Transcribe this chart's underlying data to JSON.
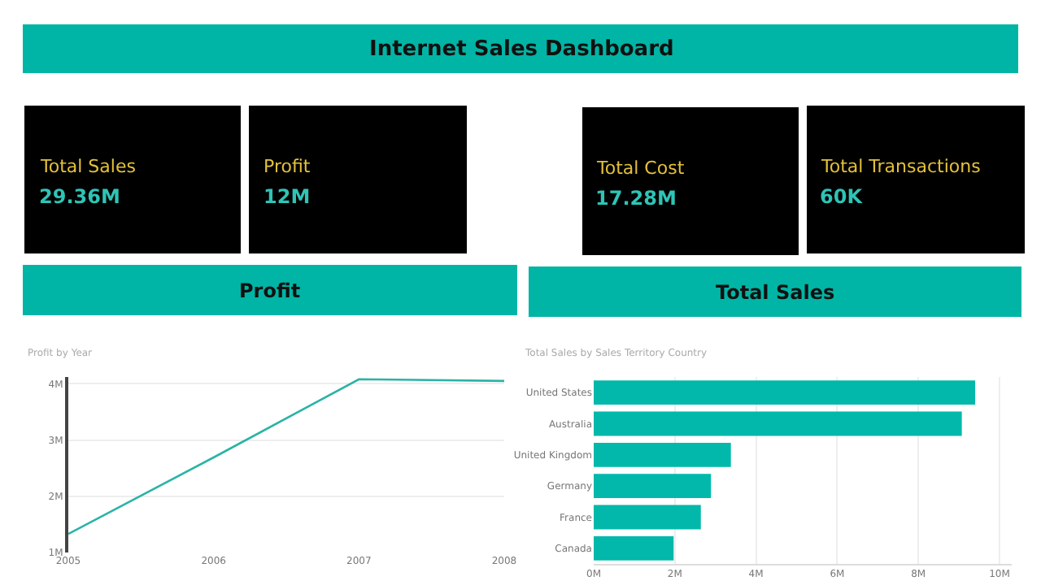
{
  "chart_data": [
    {
      "type": "other",
      "title": "Internet Sales Dashboard",
      "annotations": [
        "Total Sales",
        "29.36M",
        "Profit",
        "12M",
        "Total Cost",
        "17.28M",
        "Total Transactions",
        "60K",
        "Profit",
        "Total Sales"
      ]
    },
    {
      "type": "line",
      "title": "Profit by Year",
      "x": [
        2005,
        2006,
        2007,
        2008
      ],
      "series": [
        {
          "color": "#2ab3a6",
          "values": [
            1.33,
            2.69,
            4.08,
            4.05
          ]
        }
      ],
      "xlim": [
        2005,
        2008
      ],
      "xticks": [
        2005,
        2006,
        2007,
        2008
      ],
      "ylim": [
        1,
        4.12
      ],
      "yticks": [
        {
          "value": 1,
          "label": "1M"
        },
        {
          "value": 2,
          "label": "2M"
        },
        {
          "value": 3,
          "label": "3M"
        },
        {
          "value": 4,
          "label": "4M"
        }
      ],
      "grid": "y",
      "marker": "none"
    },
    {
      "type": "bar",
      "orientation": "horizontal",
      "title": "Total Sales by Sales Territory Country",
      "categories": [
        "United States",
        "Australia",
        "United Kingdom",
        "Germany",
        "France",
        "Canada"
      ],
      "series": [
        {
          "color": "#01b8aa",
          "values": [
            9.4,
            9.07,
            3.38,
            2.89,
            2.64,
            1.97
          ]
        }
      ],
      "xlim": [
        0,
        10.3
      ],
      "xticks": [
        {
          "value": 0,
          "label": "0M"
        },
        {
          "value": 2,
          "label": "2M"
        },
        {
          "value": 4,
          "label": "4M"
        },
        {
          "value": 6,
          "label": "6M"
        },
        {
          "value": 8,
          "label": "8M"
        },
        {
          "value": 10,
          "label": "10M"
        }
      ],
      "grid": "x"
    }
  ]
}
